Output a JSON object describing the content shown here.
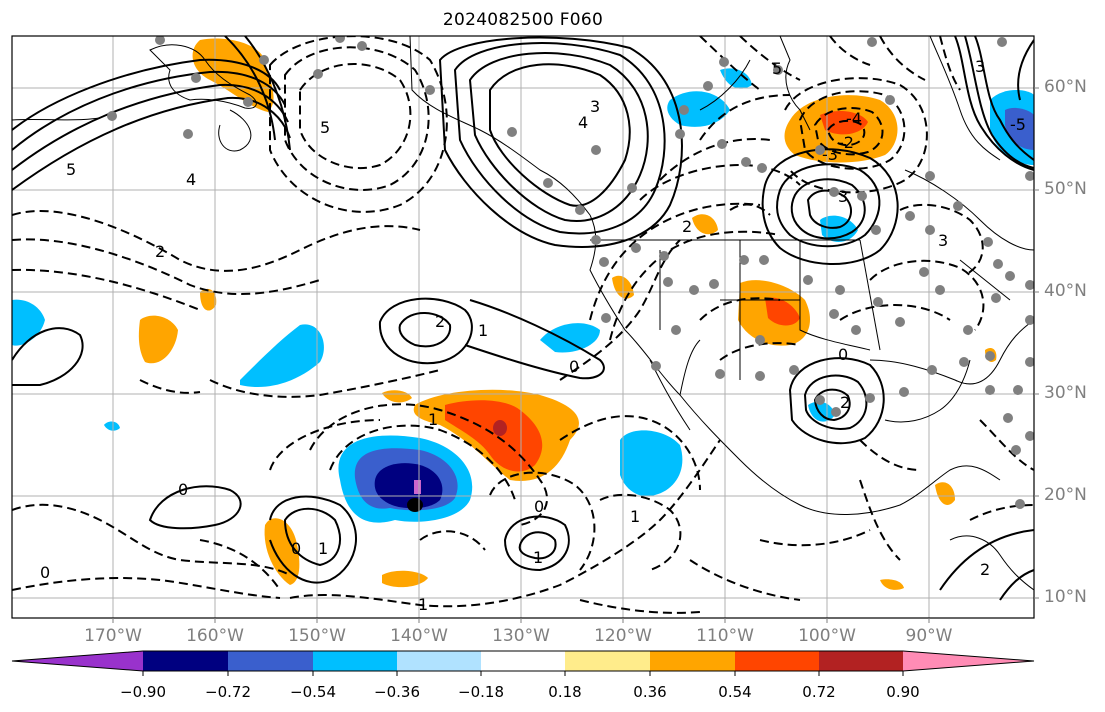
{
  "title": "2024082500 F060",
  "latitude_labels": [
    "60°N",
    "50°N",
    "40°N",
    "30°N",
    "20°N",
    "10°N"
  ],
  "longitude_labels": [
    "170°W",
    "160°W",
    "150°W",
    "140°W",
    "130°W",
    "120°W",
    "110°W",
    "100°W",
    "90°W"
  ],
  "colorbar": {
    "tick_labels": [
      "−0.90",
      "−0.72",
      "−0.54",
      "−0.36",
      "−0.18",
      "0.18",
      "0.36",
      "0.54",
      "0.72",
      "0.90"
    ],
    "colors": [
      "#9932cc",
      "#000080",
      "#3a5fcd",
      "#00bfff",
      "#b0e2ff",
      "#ffffff",
      "#ffec8b",
      "#ffa500",
      "#ff4500",
      "#b22222",
      "#ff8cb5"
    ]
  },
  "contour_labels": [
    "5",
    "5",
    "4",
    "3",
    "2",
    "2",
    "1",
    "0",
    "0",
    "0",
    "0",
    "0",
    "1",
    "1",
    "1",
    "1",
    "2",
    "3",
    "4",
    "5",
    "3",
    "3",
    "2",
    "1",
    "0",
    "2",
    "-4",
    "-2",
    "-3",
    "-5"
  ],
  "colors": {
    "axis_label": "#7f7f7f",
    "gridline": "#b0b0b0",
    "station_dot": "#808080"
  }
}
